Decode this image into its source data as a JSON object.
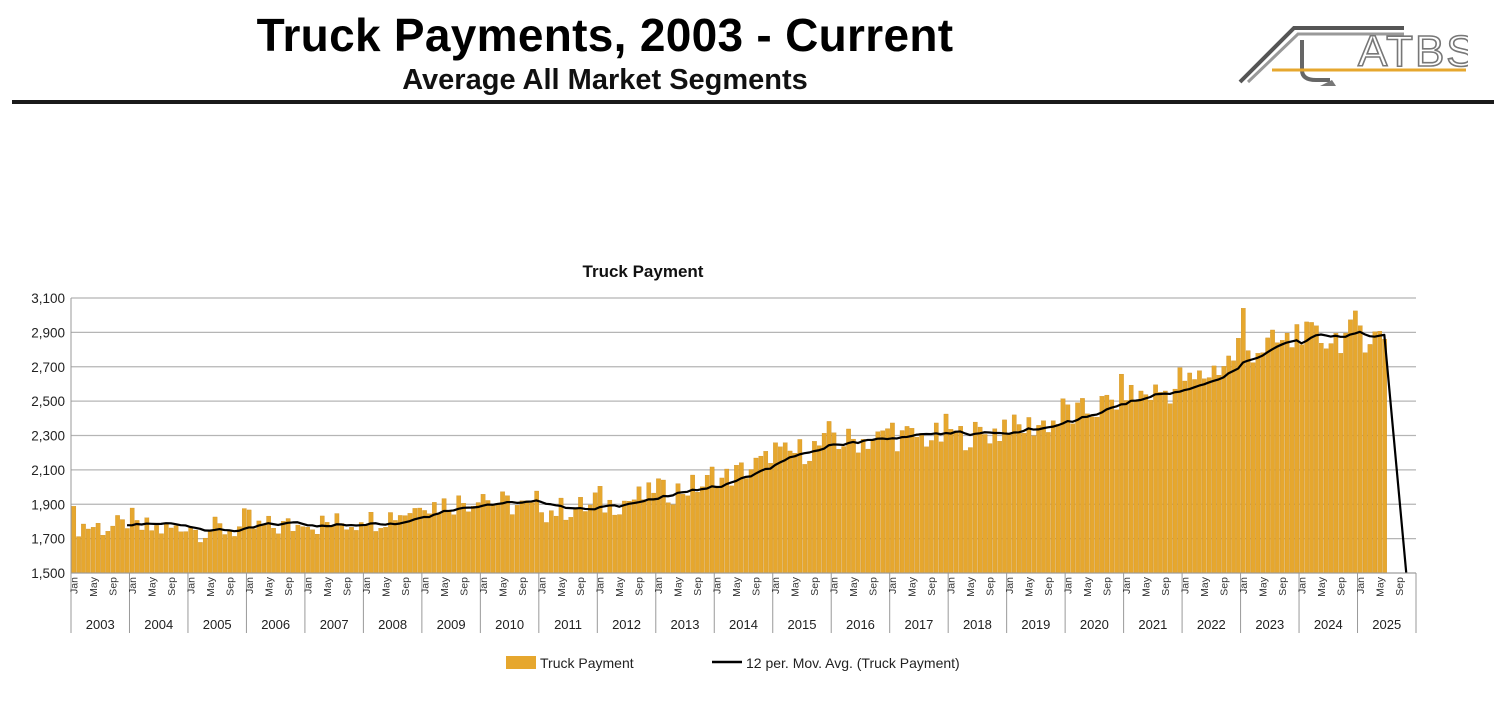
{
  "header": {
    "title": "Truck Payments, 2003 - Current",
    "subtitle": "Average All Market Segments",
    "logo_text": "ATBS"
  },
  "colors": {
    "bar": "#E6A72E",
    "bar_edge": "#C9891A",
    "line": "#000000",
    "grid": "#B5B5B5",
    "rule": "#1a1a1a"
  },
  "chart_data": {
    "type": "bar",
    "title": "Truck Payment",
    "xlabel": "",
    "ylabel": "",
    "ylim": [
      1500,
      3100
    ],
    "yticks": [
      1500,
      1700,
      1900,
      2100,
      2300,
      2500,
      2700,
      2900,
      3100
    ],
    "ytick_labels": [
      "1,500",
      "1,700",
      "1,900",
      "2,100",
      "2,300",
      "2,500",
      "2,700",
      "2,900",
      "3,100"
    ],
    "grid": true,
    "legend_position": "bottom",
    "month_tick_labels": [
      "Jan",
      "May",
      "Sep"
    ],
    "years": [
      "2003",
      "2004",
      "2005",
      "2006",
      "2007",
      "2008",
      "2009",
      "2010",
      "2011",
      "2012",
      "2013",
      "2014",
      "2015",
      "2016",
      "2017",
      "2018",
      "2019",
      "2020",
      "2021",
      "2022",
      "2023",
      "2024",
      "2025"
    ],
    "annual_averages": [
      1780,
      1760,
      1750,
      1760,
      1780,
      1800,
      1890,
      1930,
      1860,
      1890,
      1960,
      2030,
      2170,
      2260,
      2290,
      2290,
      2330,
      2400,
      2520,
      2580,
      2790,
      2860,
      2880
    ],
    "months_shown_last_year": 6,
    "series": [
      {
        "name": "Truck Payment",
        "type": "bar",
        "values_desc": "monthly"
      },
      {
        "name": "12 per. Mov. Avg. (Truck Payment)",
        "type": "line"
      }
    ],
    "legend": [
      "Truck Payment",
      "12 per. Mov. Avg. (Truck Payment)"
    ],
    "moving_average_end_value": 1500
  }
}
